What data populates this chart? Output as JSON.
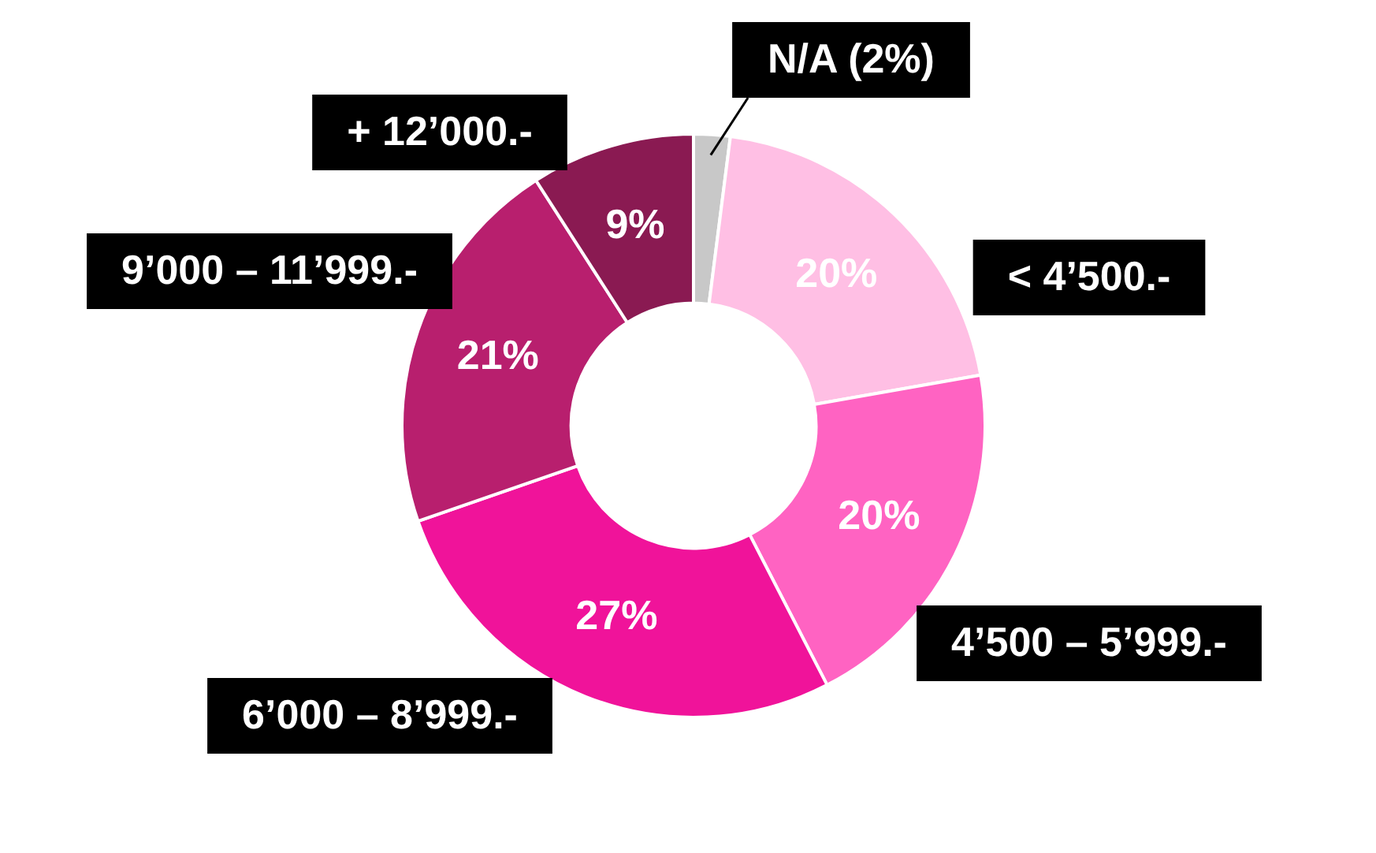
{
  "chart_data": {
    "type": "donut",
    "categories": [
      "N/A (2%)",
      "< 4’500.-",
      "4’500 – 5’999.-",
      "6’000 – 8’999.-",
      "9’000 – 11’999.-",
      "+ 12’000.-"
    ],
    "values": [
      2,
      20,
      20,
      27,
      21,
      9
    ],
    "value_labels": [
      null,
      "20%",
      "20%",
      "27%",
      "21%",
      "9%"
    ],
    "colors": [
      "#c8c8c8",
      "#ffbfe4",
      "#ff63c2",
      "#f0139a",
      "#b81f6e",
      "#8a1a52"
    ],
    "legend": false
  }
}
